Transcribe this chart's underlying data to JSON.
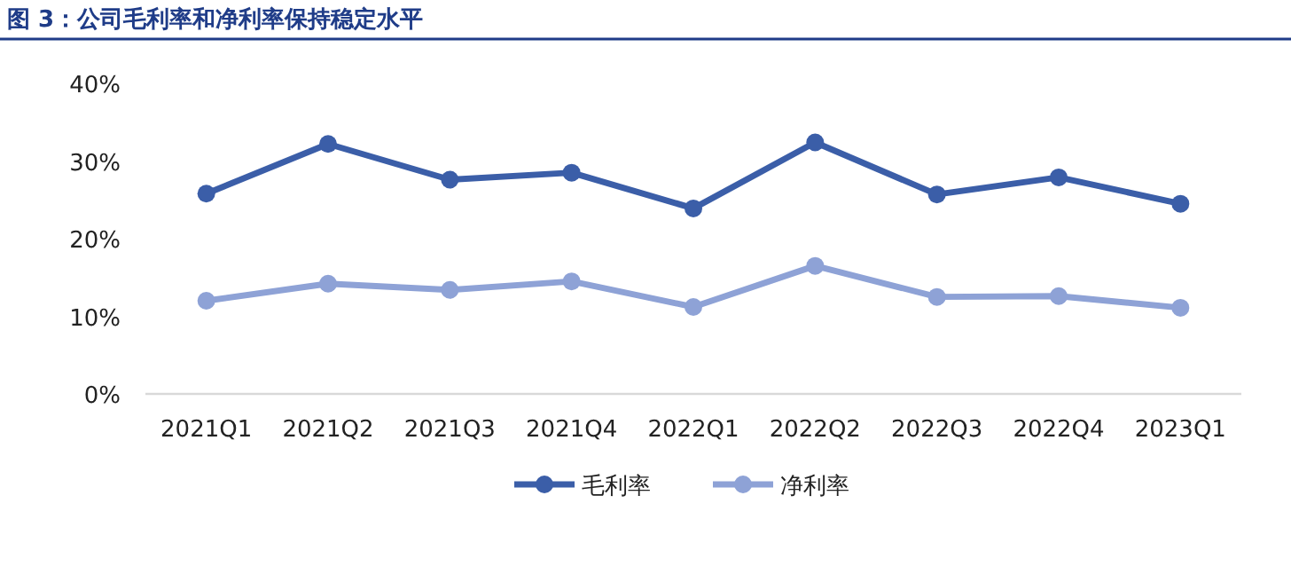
{
  "chart_data": {
    "type": "line",
    "title": "图 3：公司毛利率和净利率保持稳定水平",
    "categories": [
      "2021Q1",
      "2021Q2",
      "2021Q3",
      "2021Q4",
      "2022Q1",
      "2022Q2",
      "2022Q3",
      "2022Q4",
      "2023Q1"
    ],
    "series": [
      {
        "name": "毛利率",
        "color": "#3b5ea8",
        "values": [
          25.8,
          32.2,
          27.6,
          28.5,
          23.9,
          32.4,
          25.7,
          27.9,
          24.5
        ]
      },
      {
        "name": "净利率",
        "color": "#8ea2d6",
        "values": [
          12.0,
          14.2,
          13.4,
          14.5,
          11.2,
          16.5,
          12.5,
          12.6,
          11.1
        ]
      }
    ],
    "ylim": [
      0,
      40
    ],
    "yticks": [
      {
        "value": 0,
        "label": "0%"
      },
      {
        "value": 10,
        "label": "10%"
      },
      {
        "value": 20,
        "label": "20%"
      },
      {
        "value": 30,
        "label": "30%"
      },
      {
        "value": 40,
        "label": "40%"
      }
    ],
    "grid": false,
    "legend": "bottom",
    "marker": "circle",
    "line_style": "solid"
  }
}
